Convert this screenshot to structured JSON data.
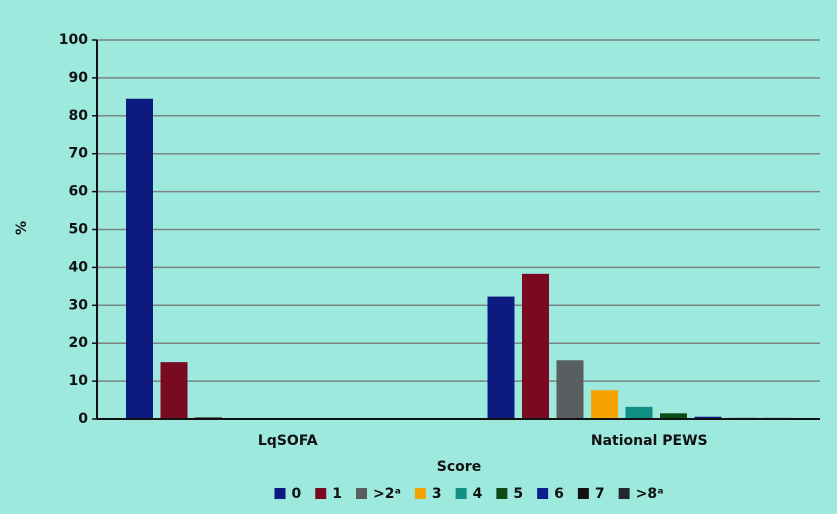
{
  "chart_data": {
    "type": "bar",
    "x_label": "Score",
    "y_label": "%",
    "categories": [
      "LqSOFA",
      "National PEWS"
    ],
    "series": [
      {
        "name": "0",
        "color": "#0d1a80",
        "values": [
          84.5,
          32.3
        ]
      },
      {
        "name": "1",
        "color": "#7a0a22",
        "values": [
          15,
          38.3
        ]
      },
      {
        "name": ">2ᵃ",
        "color": "#595e60",
        "values": [
          0.5,
          15.5
        ]
      },
      {
        "name": "3",
        "color": "#f5a300",
        "values": [
          null,
          7.6
        ]
      },
      {
        "name": "4",
        "color": "#128f84",
        "values": [
          null,
          3.2
        ]
      },
      {
        "name": "5",
        "color": "#0c4b16",
        "values": [
          null,
          1.5
        ]
      },
      {
        "name": "6",
        "color": "#0d1d8f",
        "values": [
          null,
          0.6
        ]
      },
      {
        "name": "7",
        "color": "#111111",
        "values": [
          null,
          0.3
        ]
      },
      {
        "name": ">8ᵃ",
        "color": "#22282e",
        "values": [
          null,
          0.3
        ]
      }
    ],
    "ylim": [
      0,
      100
    ],
    "yticks": [
      0,
      10,
      20,
      30,
      40,
      50,
      60,
      70,
      80,
      90,
      100
    ],
    "grid": true
  }
}
